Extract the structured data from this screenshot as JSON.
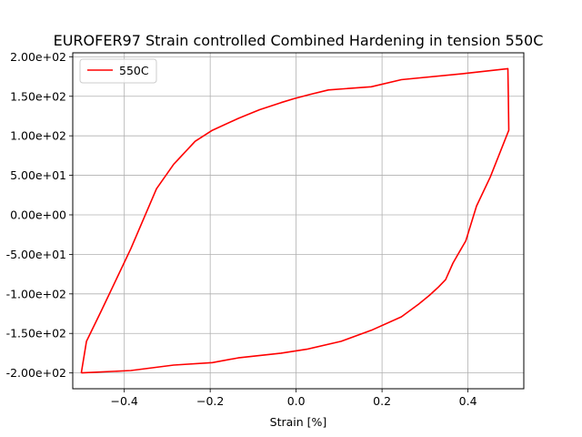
{
  "chart_data": {
    "type": "line",
    "title": "EUROFER97 Strain controlled Combined Hardening in tension 550C",
    "xlabel": "Strain  [%]",
    "ylabel": "",
    "xlim": [
      -0.52,
      0.53
    ],
    "ylim": [
      -220,
      205
    ],
    "grid": true,
    "legend_position": "top-left",
    "x_ticks": [
      -0.4,
      -0.2,
      0.0,
      0.2,
      0.4
    ],
    "x_tick_labels": [
      "−0.4",
      "−0.2",
      "0.0",
      "0.2",
      "0.4"
    ],
    "y_ticks": [
      200,
      150,
      100,
      50,
      0,
      -50,
      -100,
      -150,
      -200
    ],
    "y_tick_labels": [
      "2.00e+02",
      "1.50e+02",
      "1.00e+02",
      "5.00e+01",
      "0.00e+00",
      "-5.00e+01",
      "-1.00e+02",
      "-1.50e+02",
      "-2.00e+02"
    ],
    "series": [
      {
        "name": "550C",
        "color": "#ff0000",
        "x": [
          -0.5,
          -0.488,
          -0.453,
          -0.419,
          -0.385,
          -0.325,
          -0.285,
          -0.235,
          -0.195,
          -0.135,
          -0.085,
          -0.035,
          -0.005,
          0.03,
          0.075,
          0.175,
          0.245,
          0.395,
          0.493,
          0.494,
          0.495,
          0.452,
          0.42,
          0.395,
          0.38,
          0.365,
          0.348,
          0.33,
          0.31,
          0.285,
          0.245,
          0.175,
          0.105,
          0.025,
          -0.035,
          -0.135,
          -0.195,
          -0.285,
          -0.385,
          -0.5
        ],
        "y": [
          -200,
          -160,
          -121,
          -82,
          -43,
          33,
          64,
          93,
          107,
          122,
          133,
          142,
          147,
          152,
          158,
          162,
          171,
          179,
          185,
          150,
          107,
          48,
          11,
          -33,
          -47,
          -61,
          -82,
          -92,
          -102,
          -113,
          -129,
          -146,
          -160,
          -170,
          -175,
          -181,
          -187,
          -190,
          -197,
          -200
        ]
      }
    ]
  }
}
